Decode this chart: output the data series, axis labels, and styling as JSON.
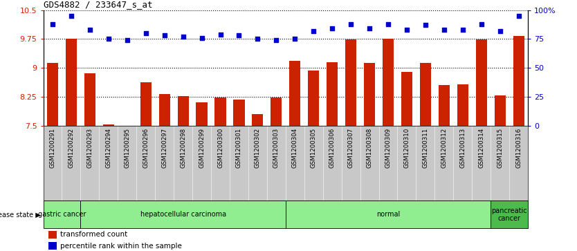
{
  "title": "GDS4882 / 233647_s_at",
  "samples": [
    "GSM1200291",
    "GSM1200292",
    "GSM1200293",
    "GSM1200294",
    "GSM1200295",
    "GSM1200296",
    "GSM1200297",
    "GSM1200298",
    "GSM1200299",
    "GSM1200300",
    "GSM1200301",
    "GSM1200302",
    "GSM1200303",
    "GSM1200304",
    "GSM1200305",
    "GSM1200306",
    "GSM1200307",
    "GSM1200308",
    "GSM1200309",
    "GSM1200310",
    "GSM1200311",
    "GSM1200312",
    "GSM1200313",
    "GSM1200314",
    "GSM1200315",
    "GSM1200316"
  ],
  "transformed_count": [
    9.12,
    9.75,
    8.85,
    7.52,
    7.48,
    8.62,
    8.32,
    8.27,
    8.1,
    8.22,
    8.18,
    7.8,
    8.23,
    9.18,
    8.92,
    9.14,
    9.73,
    9.12,
    9.75,
    8.9,
    9.12,
    8.55,
    8.57,
    9.73,
    8.28,
    9.82
  ],
  "percentile": [
    88,
    95,
    83,
    75,
    74,
    80,
    78,
    77,
    76,
    79,
    78,
    75,
    74,
    75,
    82,
    84,
    88,
    84,
    88,
    83,
    87,
    83,
    83,
    88,
    82,
    95
  ],
  "disease_groups": [
    {
      "label": "gastric cancer",
      "start": 0,
      "end": 2
    },
    {
      "label": "hepatocellular carcinoma",
      "start": 2,
      "end": 13
    },
    {
      "label": "normal",
      "start": 13,
      "end": 24
    },
    {
      "label": "pancreatic\ncancer",
      "start": 24,
      "end": 26
    }
  ],
  "light_green": "#90EE90",
  "mid_green": "#4CBB4C",
  "ylim": [
    7.5,
    10.5
  ],
  "yticks_left": [
    7.5,
    8.25,
    9.0,
    9.75,
    10.5
  ],
  "yticks_right": [
    0,
    25,
    50,
    75,
    100
  ],
  "bar_color": "#CC2200",
  "dot_color": "#0000CC",
  "background_color": "#FFFFFF",
  "label_bg_color": "#C8C8C8"
}
